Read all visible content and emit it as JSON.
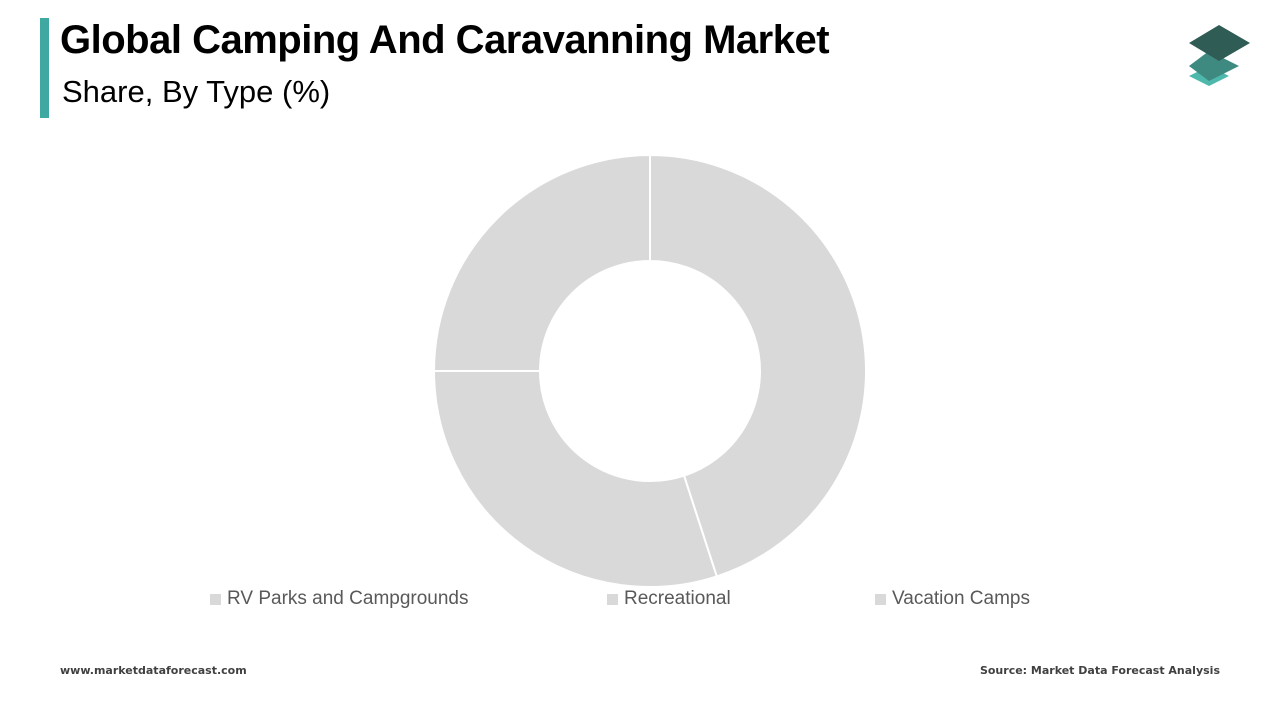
{
  "header": {
    "title": "Global Camping And Caravanning Market",
    "subtitle": "Share, By Type (%)"
  },
  "colors": {
    "accent": "#3fa8a1",
    "slice": "#d9d9d9",
    "logo_top": "#2f5c55",
    "logo_mid": "#3f8a80",
    "logo_bottom": "#4fb8ad"
  },
  "logo": {
    "icon": "stacked-layers-icon"
  },
  "chart_data": {
    "type": "pie",
    "donut": true,
    "categories": [
      "RV Parks and Campgrounds",
      "Recreational",
      "Vacation Camps"
    ],
    "values": [
      45,
      30,
      25
    ],
    "legend_position": "bottom"
  },
  "footer": {
    "website": "www.marketdataforecast.com",
    "source": "Source: Market Data Forecast Analysis"
  }
}
